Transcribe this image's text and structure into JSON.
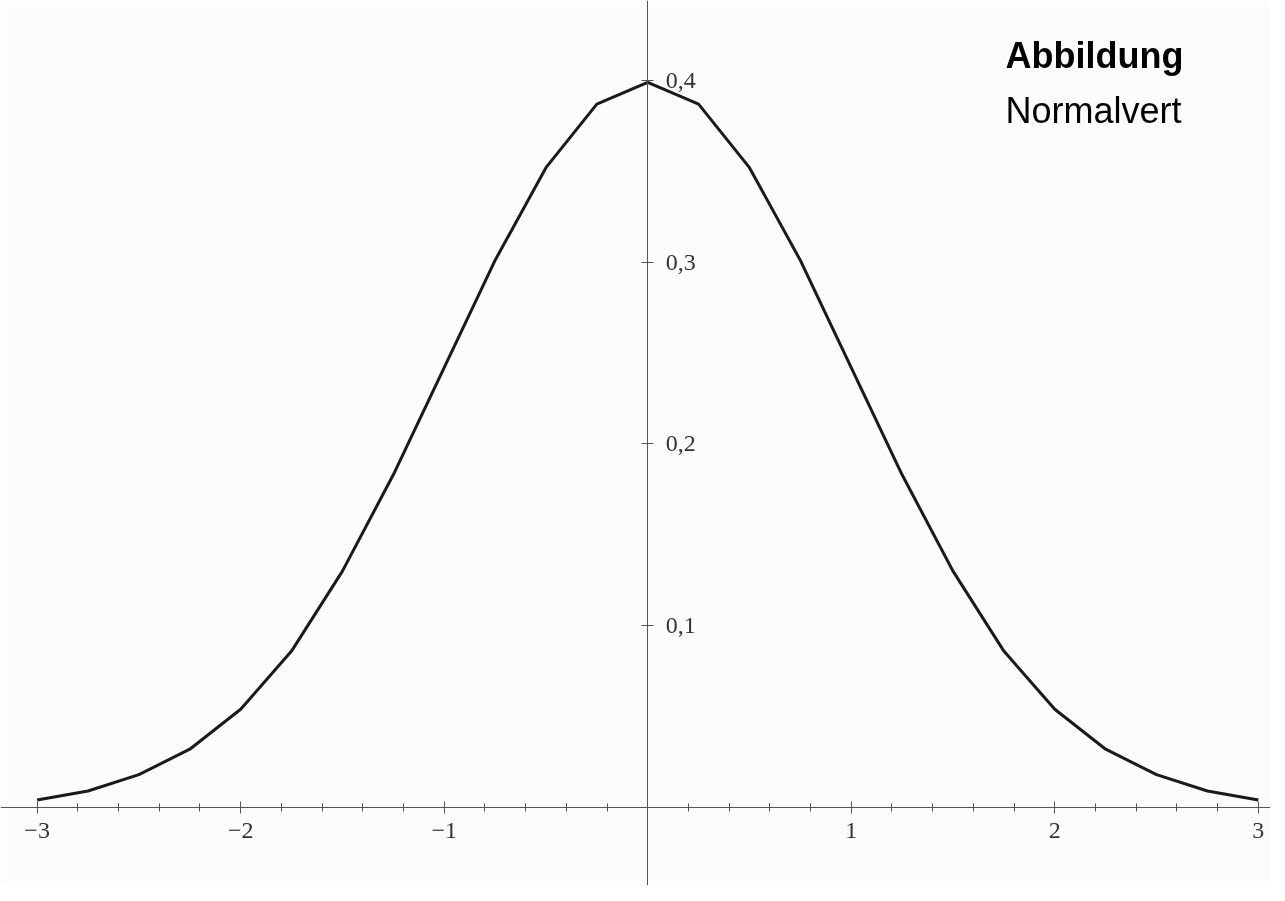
{
  "chart_data": {
    "type": "line",
    "title": "Abbildung",
    "subtitle": "Normalvert",
    "x": [
      -3,
      -2.75,
      -2.5,
      -2.25,
      -2,
      -1.75,
      -1.5,
      -1.25,
      -1,
      -0.75,
      -0.5,
      -0.25,
      0,
      0.25,
      0.5,
      0.75,
      1,
      1.25,
      1.5,
      1.75,
      2,
      2.25,
      2.5,
      2.75,
      3
    ],
    "series": [
      {
        "color": "#1a1a1a",
        "values": [
          0.004,
          0.009,
          0.018,
          0.032,
          0.054,
          0.086,
          0.13,
          0.183,
          0.242,
          0.301,
          0.352,
          0.387,
          0.399,
          0.387,
          0.352,
          0.301,
          0.242,
          0.183,
          0.13,
          0.086,
          0.054,
          0.032,
          0.018,
          0.009,
          0.004
        ]
      }
    ],
    "xlim": [
      -3.18,
      3.06
    ],
    "ylim": [
      -0.043,
      0.444
    ],
    "xticks": [
      -3,
      -2,
      -1,
      {
        "value": 0,
        "label": null
      },
      1,
      2,
      3
    ],
    "yticks": [
      {
        "value": 0.1,
        "label": "0,1"
      },
      {
        "value": 0.2,
        "label": "0,2"
      },
      {
        "value": 0.3,
        "label": "0,3"
      },
      {
        "value": 0.4,
        "label": "0,4"
      }
    ],
    "grid": false,
    "marker": "none",
    "line_style": "solid"
  }
}
